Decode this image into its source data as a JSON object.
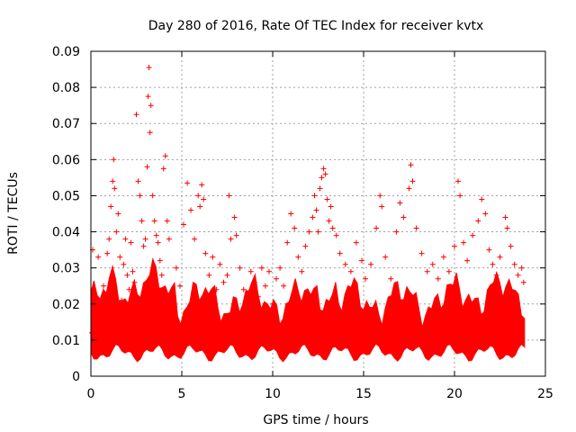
{
  "chart_data": {
    "type": "scatter",
    "title": "Day 280 of 2016, Rate Of TEC Index for receiver kvtx",
    "xlabel": "GPS time / hours",
    "ylabel": "ROTI / TECUs",
    "xlim": [
      0,
      25
    ],
    "ylim": [
      0,
      0.09
    ],
    "x_ticks": [
      0,
      5,
      10,
      15,
      20,
      25
    ],
    "x_tick_labels": [
      "0",
      "5",
      "10",
      "15",
      "20",
      "25"
    ],
    "y_ticks": [
      0,
      0.01,
      0.02,
      0.03,
      0.04,
      0.05,
      0.06,
      0.07,
      0.08,
      0.09
    ],
    "y_tick_labels": [
      "0",
      "0.01",
      "0.02",
      "0.03",
      "0.04",
      "0.05",
      "0.06",
      "0.07",
      "0.08",
      "0.09"
    ],
    "grid": true,
    "marker": "+",
    "color": "#ff0000",
    "series": [
      {
        "name": "ROTI",
        "points": [
          [
            0.05,
            0.012
          ],
          [
            0.1,
            0.035
          ],
          [
            0.2,
            0.006
          ],
          [
            0.3,
            0.021
          ],
          [
            0.4,
            0.033
          ],
          [
            0.5,
            0.016
          ],
          [
            0.6,
            0.008
          ],
          [
            0.7,
            0.025
          ],
          [
            0.8,
            0.018
          ],
          [
            0.9,
            0.034
          ],
          [
            1.0,
            0.038
          ],
          [
            1.1,
            0.047
          ],
          [
            1.2,
            0.054
          ],
          [
            1.25,
            0.06
          ],
          [
            1.3,
            0.052
          ],
          [
            1.4,
            0.04
          ],
          [
            1.5,
            0.045
          ],
          [
            1.6,
            0.033
          ],
          [
            1.7,
            0.021
          ],
          [
            1.8,
            0.031
          ],
          [
            1.9,
            0.038
          ],
          [
            2.0,
            0.028
          ],
          [
            2.1,
            0.024
          ],
          [
            2.2,
            0.037
          ],
          [
            2.3,
            0.029
          ],
          [
            2.4,
            0.026
          ],
          [
            2.5,
            0.0725
          ],
          [
            2.6,
            0.054
          ],
          [
            2.7,
            0.05
          ],
          [
            2.8,
            0.043
          ],
          [
            2.9,
            0.036
          ],
          [
            3.0,
            0.038
          ],
          [
            3.1,
            0.058
          ],
          [
            3.15,
            0.0775
          ],
          [
            3.2,
            0.0855
          ],
          [
            3.25,
            0.0675
          ],
          [
            3.3,
            0.075
          ],
          [
            3.4,
            0.05
          ],
          [
            3.5,
            0.043
          ],
          [
            3.6,
            0.039
          ],
          [
            3.7,
            0.037
          ],
          [
            3.8,
            0.032
          ],
          [
            3.9,
            0.028
          ],
          [
            4.0,
            0.0575
          ],
          [
            4.1,
            0.061
          ],
          [
            4.2,
            0.043
          ],
          [
            4.3,
            0.038
          ],
          [
            4.5,
            0.022
          ],
          [
            4.7,
            0.03
          ],
          [
            4.9,
            0.025
          ],
          [
            5.1,
            0.042
          ],
          [
            5.3,
            0.0535
          ],
          [
            5.5,
            0.046
          ],
          [
            5.7,
            0.038
          ],
          [
            5.9,
            0.05
          ],
          [
            6.0,
            0.047
          ],
          [
            6.1,
            0.053
          ],
          [
            6.2,
            0.049
          ],
          [
            6.3,
            0.034
          ],
          [
            6.5,
            0.028
          ],
          [
            6.7,
            0.033
          ],
          [
            6.9,
            0.024
          ],
          [
            7.1,
            0.031
          ],
          [
            7.3,
            0.026
          ],
          [
            7.5,
            0.028
          ],
          [
            7.6,
            0.05
          ],
          [
            7.7,
            0.038
          ],
          [
            7.9,
            0.044
          ],
          [
            8.0,
            0.039
          ],
          [
            8.2,
            0.03
          ],
          [
            8.4,
            0.024
          ],
          [
            8.6,
            0.021
          ],
          [
            8.8,
            0.029
          ],
          [
            9.0,
            0.026
          ],
          [
            9.2,
            0.022
          ],
          [
            9.4,
            0.03
          ],
          [
            9.6,
            0.025
          ],
          [
            9.8,
            0.029
          ],
          [
            10.0,
            0.02
          ],
          [
            10.2,
            0.027
          ],
          [
            10.4,
            0.03
          ],
          [
            10.6,
            0.025
          ],
          [
            10.8,
            0.037
          ],
          [
            11.0,
            0.045
          ],
          [
            11.2,
            0.041
          ],
          [
            11.4,
            0.033
          ],
          [
            11.6,
            0.029
          ],
          [
            11.8,
            0.036
          ],
          [
            12.0,
            0.04
          ],
          [
            12.2,
            0.044
          ],
          [
            12.3,
            0.05
          ],
          [
            12.4,
            0.046
          ],
          [
            12.5,
            0.04
          ],
          [
            12.6,
            0.052
          ],
          [
            12.7,
            0.055
          ],
          [
            12.8,
            0.0575
          ],
          [
            12.9,
            0.056
          ],
          [
            13.0,
            0.049
          ],
          [
            13.1,
            0.043
          ],
          [
            13.2,
            0.047
          ],
          [
            13.3,
            0.041
          ],
          [
            13.5,
            0.039
          ],
          [
            13.7,
            0.034
          ],
          [
            14.0,
            0.031
          ],
          [
            14.3,
            0.029
          ],
          [
            14.6,
            0.037
          ],
          [
            14.9,
            0.032
          ],
          [
            15.1,
            0.027
          ],
          [
            15.4,
            0.031
          ],
          [
            15.7,
            0.041
          ],
          [
            15.9,
            0.05
          ],
          [
            16.0,
            0.047
          ],
          [
            16.2,
            0.033
          ],
          [
            16.5,
            0.027
          ],
          [
            16.8,
            0.04
          ],
          [
            17.0,
            0.048
          ],
          [
            17.2,
            0.044
          ],
          [
            17.5,
            0.052
          ],
          [
            17.6,
            0.0585
          ],
          [
            17.7,
            0.054
          ],
          [
            17.9,
            0.041
          ],
          [
            18.2,
            0.034
          ],
          [
            18.5,
            0.029
          ],
          [
            18.8,
            0.031
          ],
          [
            19.1,
            0.027
          ],
          [
            19.4,
            0.033
          ],
          [
            19.7,
            0.029
          ],
          [
            20.0,
            0.036
          ],
          [
            20.2,
            0.054
          ],
          [
            20.3,
            0.05
          ],
          [
            20.5,
            0.037
          ],
          [
            20.7,
            0.032
          ],
          [
            21.0,
            0.039
          ],
          [
            21.3,
            0.043
          ],
          [
            21.5,
            0.049
          ],
          [
            21.7,
            0.045
          ],
          [
            21.9,
            0.035
          ],
          [
            22.1,
            0.031
          ],
          [
            22.3,
            0.028
          ],
          [
            22.5,
            0.033
          ],
          [
            22.8,
            0.044
          ],
          [
            22.9,
            0.041
          ],
          [
            23.1,
            0.036
          ],
          [
            23.3,
            0.031
          ],
          [
            23.5,
            0.028
          ],
          [
            23.7,
            0.03
          ],
          [
            23.8,
            0.026
          ]
        ]
      }
    ]
  }
}
